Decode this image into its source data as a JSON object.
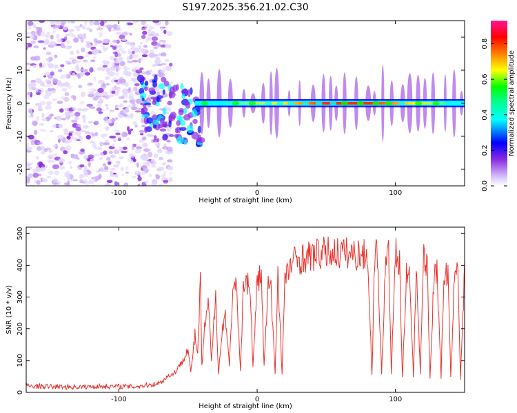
{
  "title": "S197.2025.356.21.02.C30",
  "colors": {
    "snr_line": "#e8302b",
    "cmap": [
      "#ffffff",
      "#e4d8ff",
      "#8a2be2",
      "#0000ff",
      "#00ffff",
      "#00ff00",
      "#ffff00",
      "#ff8000",
      "#ff0000",
      "#ff1493"
    ]
  },
  "chart_data": [
    {
      "type": "heatmap",
      "name": "spectrogram",
      "xlabel": "Height of straight line (km)",
      "ylabel": "Frequency (Hz)",
      "xlim": [
        -167,
        150
      ],
      "ylim": [
        -25,
        25
      ],
      "xticks": [
        -100,
        0,
        100
      ],
      "xtick_labels": [
        "-100",
        "0",
        "100"
      ],
      "yticks": [
        -20,
        -10,
        0,
        10,
        20
      ],
      "ytick_labels": [
        "-20",
        "-10",
        "0",
        "10",
        "20"
      ],
      "colorbar": {
        "label": "Normalized spectral amplitude",
        "range": [
          0.0,
          0.93
        ],
        "ticks": [
          0.0,
          0.2,
          0.4,
          0.6,
          0.8
        ],
        "tick_labels": [
          "0.0",
          "0.2",
          "0.4",
          "0.6",
          "0.8"
        ]
      },
      "features": [
        {
          "kind": "noise",
          "x_range": [
            -167,
            -62
          ],
          "f_range": [
            -25,
            25
          ],
          "amplitude": 0.12
        },
        {
          "kind": "tone",
          "x_range": [
            -45,
            150
          ],
          "freq": 0,
          "amplitude": 0.75
        },
        {
          "kind": "peak",
          "x": 40,
          "freq": 0,
          "amplitude": 0.9
        }
      ]
    },
    {
      "type": "line",
      "name": "snr",
      "xlabel": "Height of straight line (km)",
      "ylabel": "SNR (10 * v/v)",
      "xlim": [
        -167,
        150
      ],
      "ylim": [
        0,
        520
      ],
      "xticks": [
        -100,
        0,
        100
      ],
      "xtick_labels": [
        "-100",
        "0",
        "100"
      ],
      "yticks": [
        0,
        100,
        200,
        300,
        400,
        500
      ],
      "ytick_labels": [
        "0",
        "100",
        "200",
        "300",
        "400",
        "500"
      ],
      "series": [
        {
          "name": "SNR",
          "x": [
            -167,
            -150,
            -130,
            -110,
            -90,
            -80,
            -70,
            -65,
            -60,
            -55,
            -50,
            -48,
            -45,
            -43,
            -41,
            -40,
            -38,
            -35,
            -33,
            -30,
            -28,
            -25,
            -23,
            -20,
            -18,
            -15,
            -12,
            -10,
            -8,
            -5,
            -3,
            0,
            3,
            5,
            8,
            10,
            13,
            15,
            18,
            20,
            25,
            30,
            40,
            50,
            60,
            70,
            80,
            83,
            85,
            87,
            90,
            93,
            95,
            97,
            100,
            103,
            105,
            108,
            110,
            113,
            115,
            118,
            120,
            123,
            125,
            128,
            130,
            133,
            135,
            138,
            140,
            143,
            145,
            147,
            150
          ],
          "y": [
            20,
            18,
            17,
            19,
            18,
            22,
            30,
            50,
            60,
            90,
            140,
            60,
            180,
            120,
            350,
            80,
            200,
            280,
            90,
            320,
            60,
            200,
            250,
            80,
            300,
            330,
            60,
            350,
            360,
            320,
            80,
            350,
            370,
            80,
            340,
            320,
            60,
            380,
            60,
            350,
            410,
            420,
            430,
            440,
            440,
            435,
            430,
            50,
            440,
            430,
            60,
            420,
            430,
            60,
            440,
            400,
            40,
            390,
            380,
            50,
            410,
            60,
            420,
            400,
            40,
            390,
            380,
            50,
            360,
            380,
            40,
            410,
            420,
            40,
            380
          ]
        }
      ]
    }
  ]
}
